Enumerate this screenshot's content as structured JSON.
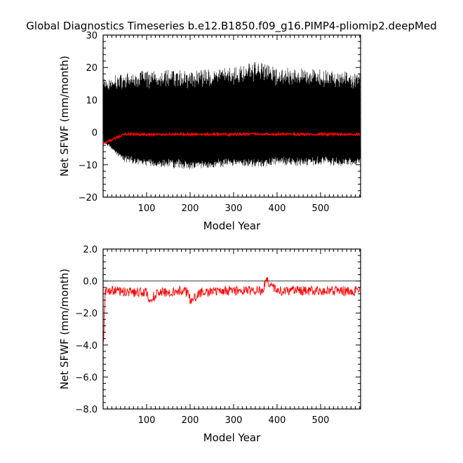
{
  "figure": {
    "title": "Global Diagnostics Timeseries b.e12.B1850.f09_g16.PIMP4-pliomip2.deepMed"
  },
  "chart_data": [
    {
      "type": "line",
      "title": "Global Diagnostics Timeseries b.e12.B1850.f09_g16.PIMP4-pliomip2.deepMed",
      "xlabel": "Model Year",
      "ylabel": "Net SFWF (mm/month)",
      "xlim": [
        0,
        592
      ],
      "ylim": [
        -20,
        30
      ],
      "xticks": [
        100,
        200,
        300,
        400,
        500
      ],
      "xtick_labels": [
        "100",
        "200",
        "300",
        "400",
        "500"
      ],
      "yticks": [
        -20,
        -10,
        0,
        10,
        20,
        30
      ],
      "ytick_labels": [
        "−20",
        "−10",
        "0",
        "10",
        "20",
        "30"
      ],
      "reference_line": 0,
      "series": [
        {
          "kind": "monthly",
          "color": "#000000",
          "envelope": {
            "x": [
              1,
              50,
              100,
              150,
              200,
              250,
              300,
              350,
              400,
              450,
              500,
              550,
              590
            ],
            "max": [
              18,
              20.5,
              20.5,
              21,
              20.5,
              21.5,
              21.5,
              23.5,
              21.5,
              21.5,
              21,
              20.5,
              20
            ],
            "min": [
              -3,
              -9.5,
              -10.5,
              -11,
              -11.5,
              -11,
              -10.5,
              -11,
              -10,
              -10.5,
              -10,
              -10.5,
              -10
            ]
          }
        },
        {
          "kind": "annual-mean",
          "color": "#ff0000",
          "x": [
            1,
            50,
            100,
            150,
            200,
            250,
            300,
            350,
            400,
            450,
            500,
            550,
            590
          ],
          "values": [
            -3.5,
            -0.6,
            -0.7,
            -0.6,
            -0.7,
            -0.6,
            -0.6,
            -0.5,
            -0.6,
            -0.6,
            -0.6,
            -0.6,
            -0.6
          ]
        }
      ]
    },
    {
      "type": "line",
      "xlabel": "Model Year",
      "ylabel": "Net SFWF (mm/month)",
      "xlim": [
        0,
        592
      ],
      "ylim": [
        -8,
        2
      ],
      "xticks": [
        100,
        200,
        300,
        400,
        500
      ],
      "xtick_labels": [
        "100",
        "200",
        "300",
        "400",
        "500"
      ],
      "yticks": [
        -8,
        -6,
        -4,
        -2,
        0,
        2
      ],
      "ytick_labels": [
        "−8.0",
        "−6.0",
        "−4.0",
        "−2.0",
        "0.0",
        "2.0"
      ],
      "reference_line": 0,
      "series": [
        {
          "kind": "annual-mean",
          "color": "#ff0000",
          "x": [
            1,
            5,
            10,
            25,
            50,
            75,
            100,
            105,
            125,
            150,
            175,
            195,
            200,
            225,
            250,
            275,
            300,
            325,
            350,
            368,
            375,
            400,
            425,
            450,
            475,
            500,
            525,
            550,
            575,
            585,
            590
          ],
          "values": [
            -3.8,
            -0.6,
            -0.6,
            -0.6,
            -0.7,
            -0.7,
            -0.7,
            -1.3,
            -0.7,
            -0.7,
            -0.6,
            -0.7,
            -1.2,
            -0.7,
            -0.7,
            -0.6,
            -0.6,
            -0.6,
            -0.6,
            -0.6,
            0.1,
            -0.6,
            -0.6,
            -0.6,
            -0.6,
            -0.6,
            -0.6,
            -0.6,
            -0.7,
            -0.5,
            -0.6
          ]
        }
      ]
    }
  ]
}
